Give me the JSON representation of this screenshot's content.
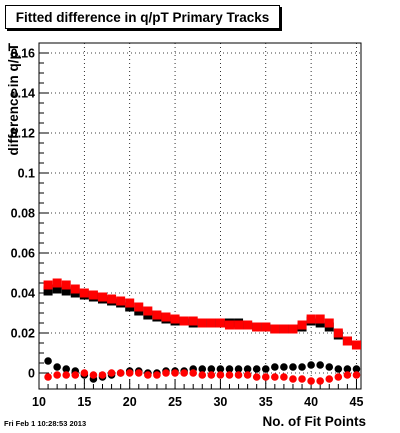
{
  "chart_data": {
    "type": "scatter",
    "title": "Fitted difference in q/pT Primary Tracks",
    "xlabel": "No. of Fit Points",
    "ylabel": "difference in q/pT",
    "xlim": [
      10,
      45.5
    ],
    "ylim": [
      -0.008,
      0.165
    ],
    "x_ticks": [
      10,
      15,
      20,
      25,
      30,
      35,
      40,
      45
    ],
    "x_tick_labels": [
      "10",
      "15",
      "20",
      "25",
      "30",
      "35",
      "40",
      "45"
    ],
    "y_ticks": [
      0,
      0.02,
      0.04,
      0.06,
      0.08,
      0.1,
      0.12,
      0.14,
      0.16
    ],
    "y_tick_labels": [
      "0",
      "0.02",
      "0.04",
      "0.06",
      "0.08",
      "0.1",
      "0.12",
      "0.14",
      "0.16"
    ],
    "grid": true,
    "x": [
      11,
      12,
      13,
      14,
      15,
      16,
      17,
      18,
      19,
      20,
      21,
      22,
      23,
      24,
      25,
      26,
      27,
      28,
      29,
      30,
      31,
      32,
      33,
      34,
      35,
      36,
      37,
      38,
      39,
      40,
      41,
      42,
      43,
      44,
      45
    ],
    "series": [
      {
        "color": "#000000",
        "marker": "square",
        "values": [
          0.041,
          0.042,
          0.041,
          0.04,
          0.039,
          0.038,
          0.037,
          0.036,
          0.035,
          0.033,
          0.031,
          0.029,
          0.028,
          0.027,
          0.026,
          0.026,
          0.025,
          0.025,
          0.025,
          0.025,
          0.025,
          0.025,
          0.024,
          0.023,
          0.023,
          0.022,
          0.022,
          0.022,
          0.023,
          0.026,
          0.025,
          0.023,
          0.019,
          0.016,
          0.014
        ]
      },
      {
        "color": "#ff0000",
        "marker": "square",
        "values": [
          0.044,
          0.045,
          0.044,
          0.042,
          0.04,
          0.039,
          0.038,
          0.037,
          0.036,
          0.035,
          0.033,
          0.031,
          0.029,
          0.028,
          0.027,
          0.026,
          0.026,
          0.025,
          0.025,
          0.025,
          0.024,
          0.024,
          0.024,
          0.023,
          0.023,
          0.022,
          0.022,
          0.022,
          0.024,
          0.027,
          0.027,
          0.025,
          0.02,
          0.016,
          0.014
        ]
      },
      {
        "color": "#000000",
        "marker": "circle",
        "values": [
          0.006,
          0.003,
          0.002,
          0.001,
          -0.001,
          -0.003,
          -0.002,
          -0.001,
          0.0,
          0.001,
          0.001,
          0.0,
          0.0,
          0.001,
          0.001,
          0.001,
          0.002,
          0.002,
          0.002,
          0.002,
          0.002,
          0.002,
          0.002,
          0.002,
          0.002,
          0.003,
          0.003,
          0.003,
          0.003,
          0.004,
          0.004,
          0.003,
          0.002,
          0.002,
          0.002
        ]
      },
      {
        "color": "#ff0000",
        "marker": "circle",
        "values": [
          -0.002,
          -0.001,
          -0.001,
          -0.001,
          0.0,
          -0.001,
          -0.001,
          0.0,
          0.0,
          0.0,
          0.0,
          -0.001,
          -0.001,
          0.0,
          0.0,
          0.0,
          0.0,
          -0.001,
          -0.001,
          -0.001,
          -0.001,
          -0.001,
          -0.001,
          -0.002,
          -0.002,
          -0.002,
          -0.002,
          -0.003,
          -0.003,
          -0.004,
          -0.004,
          -0.003,
          -0.002,
          -0.001,
          -0.001
        ]
      }
    ]
  },
  "timestamp": "Fri Feb  1 10:28:53 2013"
}
